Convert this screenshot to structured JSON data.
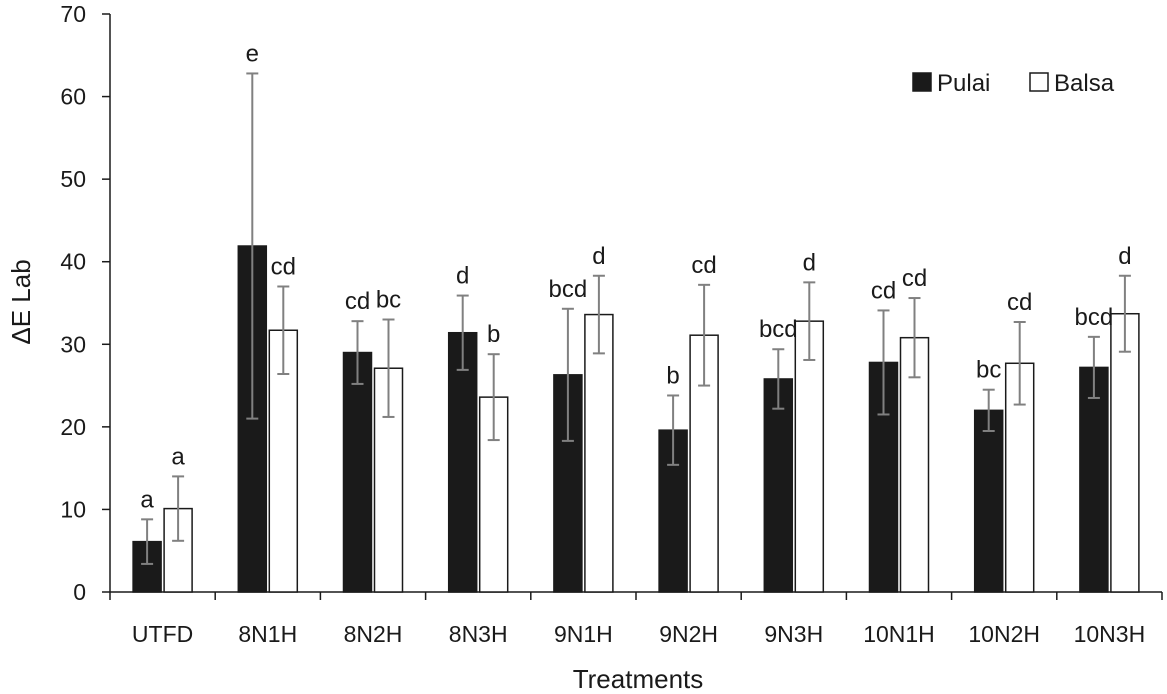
{
  "chart_data": {
    "type": "bar",
    "title": "",
    "xlabel": "Treatments",
    "ylabel": "ΔE Lab",
    "ylim": [
      0,
      70
    ],
    "yticks": [
      0,
      10,
      20,
      30,
      40,
      50,
      60,
      70
    ],
    "grid": false,
    "legend_position": "top-right",
    "categories": [
      "UTFD",
      "8N1H",
      "8N2H",
      "8N3H",
      "9N1H",
      "9N2H",
      "9N3H",
      "10N1H",
      "10N2H",
      "10N3H"
    ],
    "series": [
      {
        "name": "Pulai",
        "color": "#1a1a1a",
        "values": [
          6.1,
          41.9,
          29.0,
          31.4,
          26.3,
          19.6,
          25.8,
          27.8,
          22.0,
          27.2
        ],
        "errors": [
          2.7,
          20.9,
          3.8,
          4.5,
          8.0,
          4.2,
          3.6,
          6.3,
          2.5,
          3.7
        ],
        "labels": [
          "a",
          "e",
          "cd",
          "d",
          "bcd",
          "b",
          "bcd",
          "cd",
          "bc",
          "bcd"
        ]
      },
      {
        "name": "Balsa",
        "color": "#ffffff",
        "values": [
          10.1,
          31.7,
          27.1,
          23.6,
          33.6,
          31.1,
          32.8,
          30.8,
          27.7,
          33.7
        ],
        "errors": [
          3.9,
          5.3,
          5.9,
          5.2,
          4.7,
          6.1,
          4.7,
          4.8,
          5.0,
          4.6
        ],
        "labels": [
          "a",
          "cd",
          "bc",
          "b",
          "d",
          "cd",
          "d",
          "cd",
          "cd",
          "d"
        ]
      }
    ]
  }
}
